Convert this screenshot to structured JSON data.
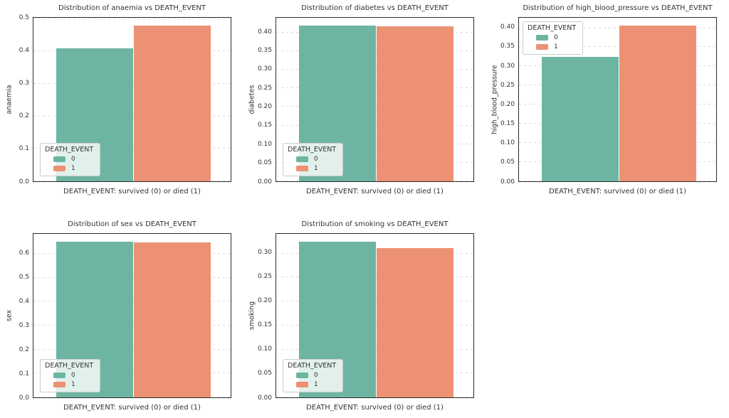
{
  "figure": {
    "background": "#ffffff",
    "palette": {
      "survived_0": "#6db5a2",
      "died_1": "#ec9174"
    },
    "grid_style": "horizontal-dashed",
    "gridline_color": "#d9d9d9",
    "spine_color": "#2b2b2b"
  },
  "chart_data": [
    {
      "type": "bar",
      "title": "Distribution of anaemia vs DEATH_EVENT",
      "xlabel": "DEATH_EVENT: survived (0) or died (1)",
      "ylabel": "anaemia",
      "categories": [
        "0",
        "1"
      ],
      "values": [
        0.409,
        0.479
      ],
      "bar_colors": [
        "#6db5a2",
        "#ec9174"
      ],
      "ylim": [
        0,
        0.503
      ],
      "ytick_values": [
        0.0,
        0.1,
        0.2,
        0.3,
        0.4,
        0.5
      ],
      "ytick_labels": [
        "0.0",
        "0.1",
        "0.2",
        "0.3",
        "0.4",
        "0.5"
      ],
      "grid": "horizontal-dashed",
      "legend": {
        "title": "DEATH_EVENT",
        "position": "lower-left",
        "entries": [
          {
            "label": "0",
            "color": "#6db5a2"
          },
          {
            "label": "1",
            "color": "#ec9174"
          }
        ]
      }
    },
    {
      "type": "bar",
      "title": "Distribution of diabetes vs DEATH_EVENT",
      "xlabel": "DEATH_EVENT: survived (0) or died (1)",
      "ylabel": "diabetes",
      "categories": [
        "0",
        "1"
      ],
      "values": [
        0.419,
        0.417
      ],
      "bar_colors": [
        "#6db5a2",
        "#ec9174"
      ],
      "ylim": [
        0,
        0.44
      ],
      "ytick_values": [
        0.0,
        0.05,
        0.1,
        0.15,
        0.2,
        0.25,
        0.3,
        0.35,
        0.4
      ],
      "ytick_labels": [
        "0.00",
        "0.05",
        "0.10",
        "0.15",
        "0.20",
        "0.25",
        "0.30",
        "0.35",
        "0.40"
      ],
      "grid": "horizontal-dashed",
      "legend": {
        "title": "DEATH_EVENT",
        "position": "lower-left",
        "entries": [
          {
            "label": "0",
            "color": "#6db5a2"
          },
          {
            "label": "1",
            "color": "#ec9174"
          }
        ]
      }
    },
    {
      "type": "bar",
      "title": "Distribution of high_blood_pressure vs DEATH_EVENT",
      "xlabel": "DEATH_EVENT: survived (0) or died (1)",
      "ylabel": "high_blood_pressure",
      "categories": [
        "0",
        "1"
      ],
      "values": [
        0.325,
        0.406
      ],
      "bar_colors": [
        "#6db5a2",
        "#ec9174"
      ],
      "ylim": [
        0,
        0.427
      ],
      "ytick_values": [
        0.0,
        0.05,
        0.1,
        0.15,
        0.2,
        0.25,
        0.3,
        0.35,
        0.4
      ],
      "ytick_labels": [
        "0.00",
        "0.05",
        "0.10",
        "0.15",
        "0.20",
        "0.25",
        "0.30",
        "0.35",
        "0.40"
      ],
      "grid": "horizontal-dashed",
      "legend": {
        "title": "DEATH_EVENT",
        "position": "upper-left",
        "entries": [
          {
            "label": "0",
            "color": "#6db5a2"
          },
          {
            "label": "1",
            "color": "#ec9174"
          }
        ]
      }
    },
    {
      "type": "bar",
      "title": "Distribution of sex vs DEATH_EVENT",
      "xlabel": "DEATH_EVENT: survived (0) or died (1)",
      "ylabel": "sex",
      "categories": [
        "0",
        "1"
      ],
      "values": [
        0.65,
        0.646
      ],
      "bar_colors": [
        "#6db5a2",
        "#ec9174"
      ],
      "ylim": [
        0,
        0.683
      ],
      "ytick_values": [
        0.0,
        0.1,
        0.2,
        0.3,
        0.4,
        0.5,
        0.6
      ],
      "ytick_labels": [
        "0.0",
        "0.1",
        "0.2",
        "0.3",
        "0.4",
        "0.5",
        "0.6"
      ],
      "grid": "horizontal-dashed",
      "legend": {
        "title": "DEATH_EVENT",
        "position": "lower-left",
        "entries": [
          {
            "label": "0",
            "color": "#6db5a2"
          },
          {
            "label": "1",
            "color": "#ec9174"
          }
        ]
      }
    },
    {
      "type": "bar",
      "title": "Distribution of smoking vs DEATH_EVENT",
      "xlabel": "DEATH_EVENT: survived (0) or died (1)",
      "ylabel": "smoking",
      "categories": [
        "0",
        "1"
      ],
      "values": [
        0.325,
        0.312
      ],
      "bar_colors": [
        "#6db5a2",
        "#ec9174"
      ],
      "ylim": [
        0,
        0.341
      ],
      "ytick_values": [
        0.0,
        0.05,
        0.1,
        0.15,
        0.2,
        0.25,
        0.3
      ],
      "ytick_labels": [
        "0.00",
        "0.05",
        "0.10",
        "0.15",
        "0.20",
        "0.25",
        "0.30"
      ],
      "grid": "horizontal-dashed",
      "legend": {
        "title": "DEATH_EVENT",
        "position": "lower-left",
        "entries": [
          {
            "label": "0",
            "color": "#6db5a2"
          },
          {
            "label": "1",
            "color": "#ec9174"
          }
        ]
      }
    }
  ]
}
